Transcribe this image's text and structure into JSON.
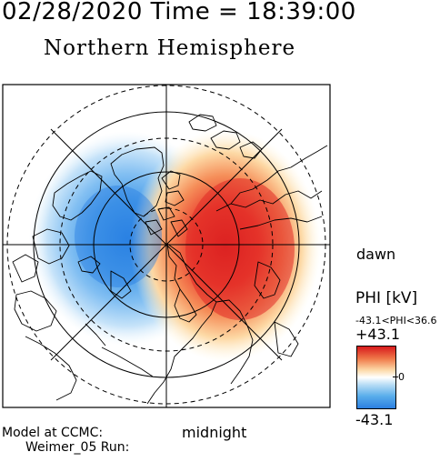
{
  "header": {
    "timestamp": "02/28/2020 Time = 18:39:00",
    "hemisphere": "Northern Hemisphere"
  },
  "orientation": {
    "dawn": "dawn",
    "midnight": "midnight"
  },
  "legend": {
    "title": "PHI [kV]",
    "range": "-43.1<PHI<36.6",
    "max": "+43.1",
    "zero": "0",
    "min": "-43.1",
    "colors": {
      "positive": "#d7191c",
      "neutral": "#ffffff",
      "negative": "#2c7fe0"
    }
  },
  "footer": {
    "model": "Model at CCMC:",
    "run": "Weimer_05 Run:"
  },
  "map_colors": {
    "coast": "#000000",
    "frame": "#000000"
  }
}
